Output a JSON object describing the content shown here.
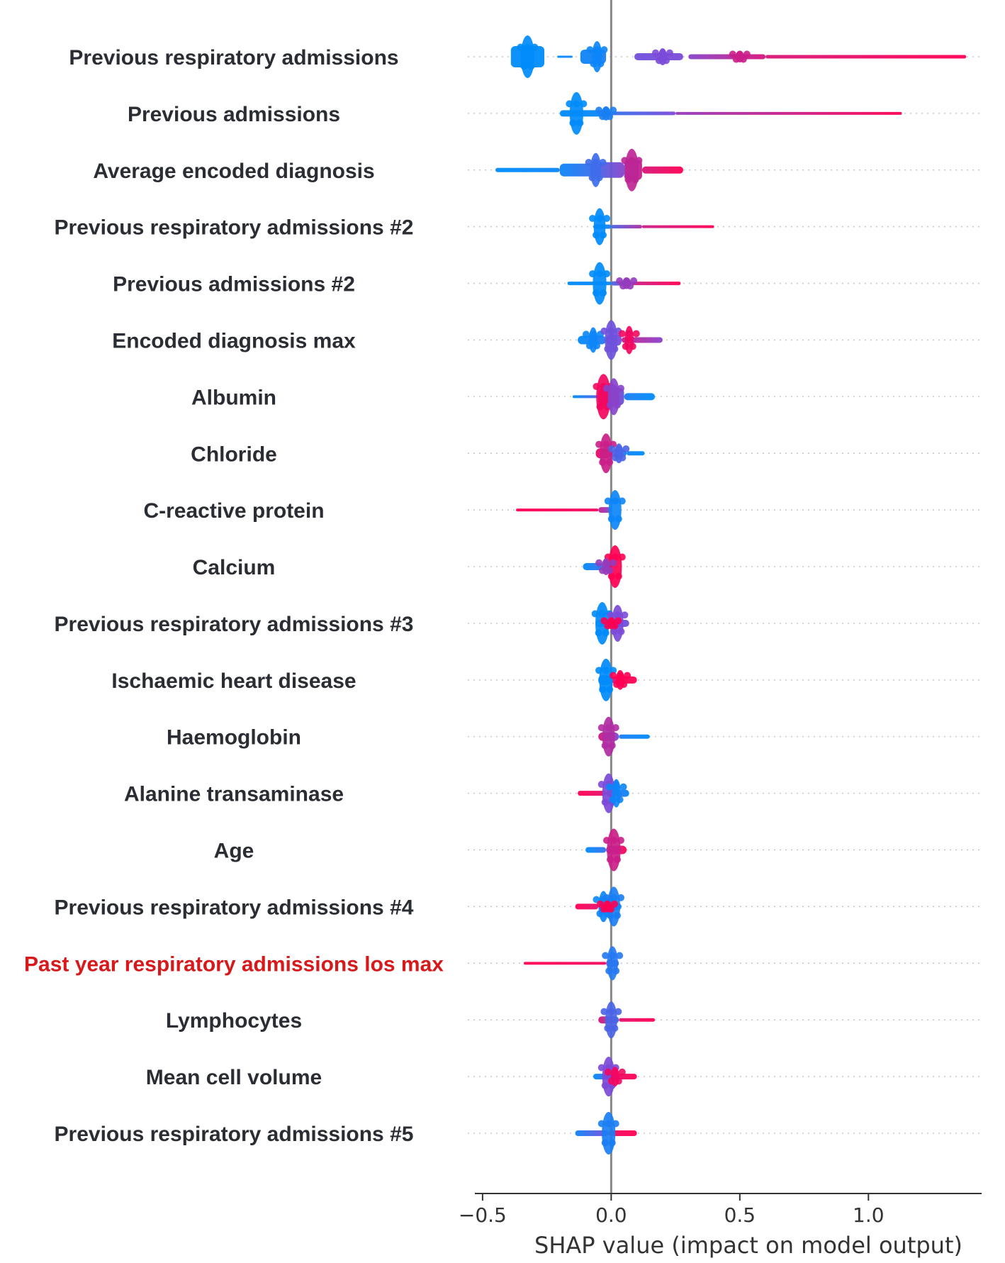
{
  "chart_data": {
    "type": "beeswarm",
    "title": "",
    "xlabel": "SHAP value (impact on model output)",
    "ylabel": "",
    "xlim": [
      -0.53,
      1.44
    ],
    "xticks": [
      {
        "value": -0.5,
        "label": "−0.5"
      },
      {
        "value": 0.0,
        "label": "0.0"
      },
      {
        "value": 0.5,
        "label": "0.5"
      },
      {
        "value": 1.0,
        "label": "1.0"
      }
    ],
    "color_low": "#008bfb",
    "color_mid": "#7b4ad8",
    "color_high": "#ff0052",
    "label_color": "#2a2d33",
    "highlight_color": "#d7191c",
    "grid": "dotted horizontal row lines",
    "features": [
      {
        "name": "Previous respiratory admissions",
        "highlight": false,
        "segments": [
          {
            "x0": -0.39,
            "x1": -0.26,
            "w": 30,
            "c0": 0.0,
            "c1": 0.0
          },
          {
            "x0": -0.21,
            "x1": -0.15,
            "w": 3,
            "c0": 0.0,
            "c1": 0.05
          },
          {
            "x0": -0.12,
            "x1": -0.02,
            "w": 20,
            "c0": 0.05,
            "c1": 0.1
          },
          {
            "x0": 0.09,
            "x1": 0.28,
            "w": 10,
            "c0": 0.45,
            "c1": 0.5
          },
          {
            "x0": 0.3,
            "x1": 0.6,
            "w": 7,
            "c0": 0.55,
            "c1": 0.85
          },
          {
            "x0": 0.6,
            "x1": 1.38,
            "w": 5,
            "c0": 0.85,
            "c1": 1.0
          }
        ],
        "clusters": [
          {
            "x": -0.325,
            "w": 30,
            "c": 0.0
          },
          {
            "x": -0.055,
            "w": 22,
            "c": 0.05
          },
          {
            "x": 0.2,
            "w": 12,
            "c": 0.5
          },
          {
            "x": 0.5,
            "w": 8,
            "c": 0.8
          }
        ]
      },
      {
        "name": "Previous admissions",
        "highlight": false,
        "segments": [
          {
            "x0": -0.2,
            "x1": 0.0,
            "w": 9,
            "c0": 0.0,
            "c1": 0.05
          },
          {
            "x0": 0.0,
            "x1": 0.25,
            "w": 5,
            "c0": 0.2,
            "c1": 0.5
          },
          {
            "x0": 0.25,
            "x1": 1.13,
            "w": 4,
            "c0": 0.6,
            "c1": 1.0
          }
        ],
        "clusters": [
          {
            "x": -0.135,
            "w": 30,
            "c": 0.0
          },
          {
            "x": -0.02,
            "w": 10,
            "c": 0.1
          }
        ]
      },
      {
        "name": "Average encoded diagnosis",
        "highlight": false,
        "segments": [
          {
            "x0": -0.45,
            "x1": -0.2,
            "w": 6,
            "c0": 0.0,
            "c1": 0.05
          },
          {
            "x0": -0.2,
            "x1": -0.05,
            "w": 18,
            "c0": 0.05,
            "c1": 0.25
          },
          {
            "x0": -0.05,
            "x1": 0.05,
            "w": 22,
            "c0": 0.3,
            "c1": 0.55
          },
          {
            "x0": 0.05,
            "x1": 0.12,
            "w": 28,
            "c0": 0.6,
            "c1": 0.8
          },
          {
            "x0": 0.12,
            "x1": 0.28,
            "w": 10,
            "c0": 0.85,
            "c1": 1.0
          }
        ],
        "clusters": [
          {
            "x": -0.06,
            "w": 24,
            "c": 0.25
          },
          {
            "x": 0.08,
            "w": 30,
            "c": 0.75
          }
        ]
      },
      {
        "name": "Previous respiratory admissions  #2",
        "highlight": false,
        "segments": [
          {
            "x0": -0.07,
            "x1": 0.0,
            "w": 6,
            "c0": 0.0,
            "c1": 0.1
          },
          {
            "x0": 0.0,
            "x1": 0.12,
            "w": 5,
            "c0": 0.3,
            "c1": 0.7
          },
          {
            "x0": 0.12,
            "x1": 0.4,
            "w": 4,
            "c0": 0.8,
            "c1": 1.0
          }
        ],
        "clusters": [
          {
            "x": -0.045,
            "w": 26,
            "c": 0.0
          }
        ]
      },
      {
        "name": "Previous admissions #2",
        "highlight": false,
        "segments": [
          {
            "x0": -0.17,
            "x1": 0.0,
            "w": 5,
            "c0": 0.0,
            "c1": 0.05
          },
          {
            "x0": 0.0,
            "x1": 0.08,
            "w": 6,
            "c0": 0.3,
            "c1": 0.6
          },
          {
            "x0": 0.08,
            "x1": 0.27,
            "w": 5,
            "c0": 0.8,
            "c1": 1.0
          }
        ],
        "clusters": [
          {
            "x": -0.045,
            "w": 30,
            "c": 0.0
          },
          {
            "x": 0.06,
            "w": 8,
            "c": 0.6
          }
        ]
      },
      {
        "name": "Encoded diagnosis max",
        "highlight": false,
        "segments": [
          {
            "x0": -0.13,
            "x1": -0.02,
            "w": 12,
            "c0": 0.0,
            "c1": 0.15
          },
          {
            "x0": -0.02,
            "x1": 0.04,
            "w": 16,
            "c0": 0.3,
            "c1": 0.5
          },
          {
            "x0": 0.04,
            "x1": 0.2,
            "w": 8,
            "c0": 0.8,
            "c1": 0.55
          }
        ],
        "clusters": [
          {
            "x": -0.07,
            "w": 18,
            "c": 0.05
          },
          {
            "x": 0.0,
            "w": 28,
            "c": 0.45
          },
          {
            "x": 0.07,
            "w": 20,
            "c": 0.95
          }
        ]
      },
      {
        "name": "Albumin",
        "highlight": false,
        "segments": [
          {
            "x0": -0.15,
            "x1": -0.05,
            "w": 4,
            "c0": 0.0,
            "c1": 0.3
          },
          {
            "x0": -0.05,
            "x1": 0.05,
            "w": 24,
            "c0": 0.95,
            "c1": 0.4
          },
          {
            "x0": 0.05,
            "x1": 0.17,
            "w": 10,
            "c0": 0.1,
            "c1": 0.0
          }
        ],
        "clusters": [
          {
            "x": -0.03,
            "w": 32,
            "c": 0.95
          },
          {
            "x": 0.01,
            "w": 26,
            "c": 0.55
          }
        ]
      },
      {
        "name": "Chloride",
        "highlight": false,
        "segments": [
          {
            "x0": -0.06,
            "x1": 0.0,
            "w": 14,
            "c0": 0.95,
            "c1": 0.7
          },
          {
            "x0": 0.0,
            "x1": 0.06,
            "w": 10,
            "c0": 0.4,
            "c1": 0.1
          },
          {
            "x0": 0.06,
            "x1": 0.13,
            "w": 6,
            "c0": 0.05,
            "c1": 0.0
          }
        ],
        "clusters": [
          {
            "x": -0.02,
            "w": 28,
            "c": 0.8
          },
          {
            "x": 0.03,
            "w": 14,
            "c": 0.3
          }
        ]
      },
      {
        "name": "C-reactive protein",
        "highlight": false,
        "segments": [
          {
            "x0": -0.37,
            "x1": -0.05,
            "w": 4,
            "c0": 1.0,
            "c1": 0.95
          },
          {
            "x0": -0.05,
            "x1": 0.0,
            "w": 8,
            "c0": 0.8,
            "c1": 0.5
          }
        ],
        "clusters": [
          {
            "x": 0.015,
            "w": 28,
            "c": 0.05
          }
        ]
      },
      {
        "name": "Calcium",
        "highlight": false,
        "segments": [
          {
            "x0": -0.11,
            "x1": -0.03,
            "w": 10,
            "c0": 0.0,
            "c1": 0.2
          },
          {
            "x0": -0.03,
            "x1": 0.0,
            "w": 12,
            "c0": 0.5,
            "c1": 0.7
          }
        ],
        "clusters": [
          {
            "x": 0.015,
            "w": 30,
            "c": 1.0
          },
          {
            "x": -0.02,
            "w": 12,
            "c": 0.6
          }
        ]
      },
      {
        "name": "Previous respiratory admissions  #3",
        "highlight": false,
        "segments": [
          {
            "x0": -0.06,
            "x1": 0.07,
            "w": 10,
            "c0": 0.0,
            "c1": 0.5
          }
        ],
        "clusters": [
          {
            "x": -0.035,
            "w": 30,
            "c": 0.0
          },
          {
            "x": 0.025,
            "w": 26,
            "c": 0.5
          },
          {
            "x": 0.0,
            "w": 8,
            "c": 1.0
          }
        ]
      },
      {
        "name": "Ischaemic heart disease",
        "highlight": false,
        "segments": [
          {
            "x0": -0.05,
            "x1": 0.0,
            "w": 14,
            "c0": 0.0,
            "c1": 0.05
          },
          {
            "x0": 0.0,
            "x1": 0.1,
            "w": 10,
            "c0": 0.95,
            "c1": 1.0
          }
        ],
        "clusters": [
          {
            "x": -0.02,
            "w": 30,
            "c": 0.0
          },
          {
            "x": 0.035,
            "w": 14,
            "c": 1.0
          }
        ]
      },
      {
        "name": "Haemoglobin",
        "highlight": false,
        "segments": [
          {
            "x0": -0.05,
            "x1": 0.03,
            "w": 12,
            "c0": 0.85,
            "c1": 0.5
          },
          {
            "x0": 0.03,
            "x1": 0.15,
            "w": 6,
            "c0": 0.1,
            "c1": 0.0
          }
        ],
        "clusters": [
          {
            "x": -0.01,
            "w": 28,
            "c": 0.7
          }
        ]
      },
      {
        "name": "Alanine transaminase",
        "highlight": false,
        "segments": [
          {
            "x0": -0.13,
            "x1": -0.02,
            "w": 7,
            "c0": 1.0,
            "c1": 0.9
          },
          {
            "x0": -0.02,
            "x1": 0.07,
            "w": 10,
            "c0": 0.4,
            "c1": 0.0
          }
        ],
        "clusters": [
          {
            "x": -0.01,
            "w": 28,
            "c": 0.5
          },
          {
            "x": 0.02,
            "w": 20,
            "c": 0.05
          }
        ]
      },
      {
        "name": "Age",
        "highlight": false,
        "segments": [
          {
            "x0": -0.1,
            "x1": -0.02,
            "w": 8,
            "c0": 0.0,
            "c1": 0.2
          },
          {
            "x0": -0.02,
            "x1": 0.06,
            "w": 12,
            "c0": 0.6,
            "c1": 1.0
          }
        ],
        "clusters": [
          {
            "x": 0.01,
            "w": 30,
            "c": 0.8
          }
        ]
      },
      {
        "name": "Previous respiratory admissions  #4",
        "highlight": false,
        "segments": [
          {
            "x0": -0.14,
            "x1": -0.05,
            "w": 8,
            "c0": 1.0,
            "c1": 0.9
          },
          {
            "x0": -0.05,
            "x1": 0.04,
            "w": 10,
            "c0": 0.2,
            "c1": 0.0
          }
        ],
        "clusters": [
          {
            "x": -0.03,
            "w": 22,
            "c": 0.05
          },
          {
            "x": 0.01,
            "w": 28,
            "c": 0.1
          },
          {
            "x": -0.015,
            "w": 8,
            "c": 1.0
          }
        ]
      },
      {
        "name": "Past year respiratory admissions los max",
        "highlight": true,
        "segments": [
          {
            "x0": -0.34,
            "x1": -0.02,
            "w": 4,
            "c0": 1.0,
            "c1": 0.95
          },
          {
            "x0": -0.02,
            "x1": 0.03,
            "w": 10,
            "c0": 0.5,
            "c1": 0.2
          }
        ],
        "clusters": [
          {
            "x": 0.005,
            "w": 24,
            "c": 0.15
          }
        ]
      },
      {
        "name": "Lymphocytes",
        "highlight": false,
        "segments": [
          {
            "x0": -0.05,
            "x1": 0.03,
            "w": 10,
            "c0": 0.9,
            "c1": 0.2
          },
          {
            "x0": 0.03,
            "x1": 0.17,
            "w": 5,
            "c0": 0.9,
            "c1": 1.0
          }
        ],
        "clusters": [
          {
            "x": 0.0,
            "w": 26,
            "c": 0.3
          }
        ]
      },
      {
        "name": "Mean cell volume",
        "highlight": false,
        "segments": [
          {
            "x0": -0.07,
            "x1": 0.0,
            "w": 8,
            "c0": 0.0,
            "c1": 0.3
          },
          {
            "x0": 0.0,
            "x1": 0.1,
            "w": 8,
            "c0": 0.9,
            "c1": 1.0
          }
        ],
        "clusters": [
          {
            "x": -0.01,
            "w": 28,
            "c": 0.5
          },
          {
            "x": 0.015,
            "w": 14,
            "c": 0.95
          }
        ]
      },
      {
        "name": "Previous respiratory admissions  #5",
        "highlight": false,
        "segments": [
          {
            "x0": -0.14,
            "x1": -0.01,
            "w": 8,
            "c0": 0.05,
            "c1": 0.5
          },
          {
            "x0": -0.01,
            "x1": 0.1,
            "w": 8,
            "c0": 0.95,
            "c1": 1.0
          }
        ],
        "clusters": [
          {
            "x": -0.01,
            "w": 30,
            "c": 0.1
          }
        ]
      }
    ]
  }
}
